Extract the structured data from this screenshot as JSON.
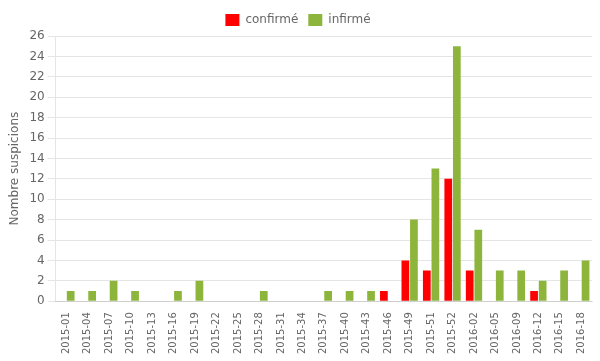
{
  "chart_data": {
    "type": "bar",
    "ylabel": "Nombre suspicions",
    "categories": [
      "2015-01",
      "2015-04",
      "2015-07",
      "2015-10",
      "2015-13",
      "2015-16",
      "2015-19",
      "2015-22",
      "2015-25",
      "2015-28",
      "2015-31",
      "2015-34",
      "2015-37",
      "2015-40",
      "2015-43",
      "2015-46",
      "2015-49",
      "2015-51",
      "2015-52",
      "2016-02",
      "2016-05",
      "2016-09",
      "2016-12",
      "2016-15",
      "2016-18"
    ],
    "series": [
      {
        "name": "confirmé",
        "color": "#ff0000",
        "values": [
          0,
          0,
          0,
          0,
          0,
          0,
          0,
          0,
          0,
          0,
          0,
          0,
          0,
          0,
          0,
          1,
          4,
          3,
          12,
          3,
          0,
          0,
          1,
          0,
          0
        ]
      },
      {
        "name": "infirmé",
        "color": "#8db53c",
        "values": [
          1,
          1,
          2,
          1,
          0,
          1,
          2,
          0,
          0,
          1,
          0,
          0,
          1,
          1,
          1,
          0,
          8,
          13,
          25,
          7,
          3,
          3,
          2,
          3,
          4
        ]
      }
    ],
    "ylim": [
      0,
      26
    ],
    "yticks": [
      0,
      2,
      4,
      6,
      8,
      10,
      12,
      14,
      16,
      18,
      20,
      22,
      24,
      26
    ],
    "grid": true,
    "legend": "top"
  }
}
